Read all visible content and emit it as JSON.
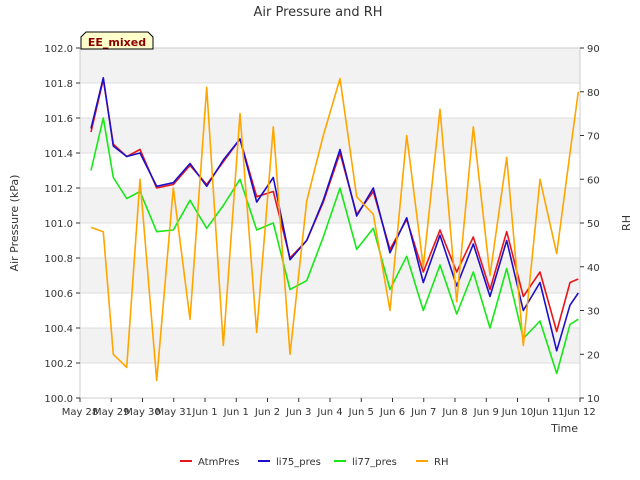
{
  "chart_data": {
    "type": "line",
    "title": "Air Pressure and RH",
    "xlabel": "Time",
    "ylabel": "Air Pressure (kPa)",
    "y2label": "RH",
    "annotation": "EE_mixed",
    "ylim": [
      100.0,
      102.0
    ],
    "y2lim": [
      10,
      90
    ],
    "xlim": [
      0,
      15
    ],
    "yticks": [
      "100.0",
      "100.2",
      "100.4",
      "100.6",
      "100.8",
      "101.0",
      "101.2",
      "101.4",
      "101.6",
      "101.8",
      "102.0"
    ],
    "y2ticks": [
      "10",
      "20",
      "30",
      "40",
      "50",
      "60",
      "70",
      "80",
      "90"
    ],
    "xticks": [
      "May 28",
      "May 29",
      "May 30",
      "May 31",
      "Jun 1",
      "Jun 1",
      "Jun 2",
      "Jun 3",
      "Jun 4",
      "Jun 5",
      "Jun 6",
      "Jun 7",
      "Jun 8",
      "Jun 9",
      "Jun 10",
      "Jun 11",
      "Jun 12"
    ],
    "grid": true,
    "legend_position": "bottom",
    "x": [
      0.33,
      0.7,
      1.0,
      1.4,
      1.8,
      2.3,
      2.8,
      3.3,
      3.8,
      4.3,
      4.8,
      5.3,
      5.8,
      6.3,
      6.8,
      7.3,
      7.8,
      8.3,
      8.8,
      9.3,
      9.8,
      10.3,
      10.8,
      11.3,
      11.8,
      12.3,
      12.8,
      13.3,
      13.8,
      14.3,
      14.7,
      14.95
    ],
    "series": [
      {
        "name": "AtmPres",
        "axis": "left",
        "color": "#e8161b",
        "values": [
          101.52,
          101.82,
          101.45,
          101.38,
          101.42,
          101.2,
          101.22,
          101.33,
          101.22,
          101.35,
          101.48,
          101.15,
          101.18,
          100.8,
          100.9,
          101.12,
          101.4,
          101.05,
          101.18,
          100.85,
          101.02,
          100.72,
          100.96,
          100.72,
          100.92,
          100.62,
          100.95,
          100.58,
          100.72,
          100.38,
          100.66,
          100.68
        ]
      },
      {
        "name": "li75_pres",
        "axis": "left",
        "color": "#1d0fc9",
        "values": [
          101.54,
          101.83,
          101.44,
          101.38,
          101.4,
          101.21,
          101.23,
          101.34,
          101.21,
          101.36,
          101.48,
          101.12,
          101.26,
          100.79,
          100.9,
          101.13,
          101.42,
          101.04,
          101.2,
          100.83,
          101.03,
          100.66,
          100.93,
          100.64,
          100.88,
          100.58,
          100.9,
          100.5,
          100.66,
          100.27,
          100.53,
          100.6
        ]
      },
      {
        "name": "li77_pres",
        "axis": "left",
        "color": "#17e817",
        "values": [
          101.3,
          101.6,
          101.26,
          101.14,
          101.18,
          100.95,
          100.96,
          101.13,
          100.97,
          101.1,
          101.25,
          100.96,
          101.0,
          100.62,
          100.67,
          100.92,
          101.2,
          100.85,
          100.97,
          100.62,
          100.81,
          100.5,
          100.76,
          100.48,
          100.72,
          100.4,
          100.74,
          100.34,
          100.44,
          100.14,
          100.42,
          100.45
        ]
      },
      {
        "name": "RH",
        "axis": "right",
        "color": "#ffa500",
        "values": [
          49,
          48,
          20,
          17,
          60,
          14,
          58,
          28,
          81,
          22,
          75,
          25,
          72,
          20,
          55,
          70,
          83,
          56,
          52,
          30,
          70,
          40,
          76,
          32,
          72,
          38,
          65,
          22,
          60,
          43,
          66,
          80
        ]
      }
    ]
  }
}
